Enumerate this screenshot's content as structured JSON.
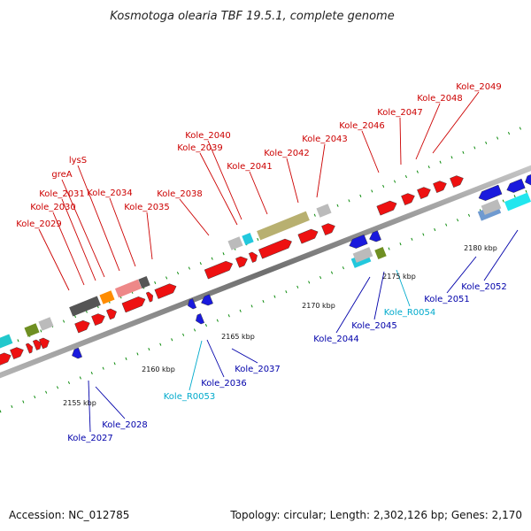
{
  "header": {
    "title": "Kosmotoga olearia TBF 19.5.1, complete genome"
  },
  "footer": {
    "accession": "Accession: NC_012785",
    "summary": "Topology: circular; Length: 2,302,126 bp; Genes: 2,170"
  },
  "colors": {
    "backbone": "#8a8a8a",
    "forward_gene": "#ee1111",
    "reverse_gene": "#1a1add",
    "forward_label": "#cc0000",
    "reverse_label": "#0000aa",
    "rna_label": "#00aacc",
    "tick": "#0a8a0a"
  },
  "scale_labels": [
    "2155 kbp",
    "2160 kbp",
    "2165 kbp",
    "2170 kbp",
    "2175 kbp",
    "2180 kbp"
  ],
  "forward_labels": [
    "Kole_2029",
    "Kole_2030",
    "Kole_2031",
    "greA",
    "lysS",
    "Kole_2034",
    "Kole_2035",
    "Kole_2038",
    "Kole_2039",
    "Kole_2040",
    "Kole_2041",
    "Kole_2042",
    "Kole_2043",
    "Kole_2046",
    "Kole_2047",
    "Kole_2048",
    "Kole_2049"
  ],
  "reverse_labels": [
    "Kole_2027",
    "Kole_2028",
    "Kole_R0053",
    "Kole_2036",
    "Kole_2037",
    "Kole_2044",
    "Kole_2045",
    "Kole_R0054",
    "Kole_2051",
    "Kole_2052"
  ]
}
